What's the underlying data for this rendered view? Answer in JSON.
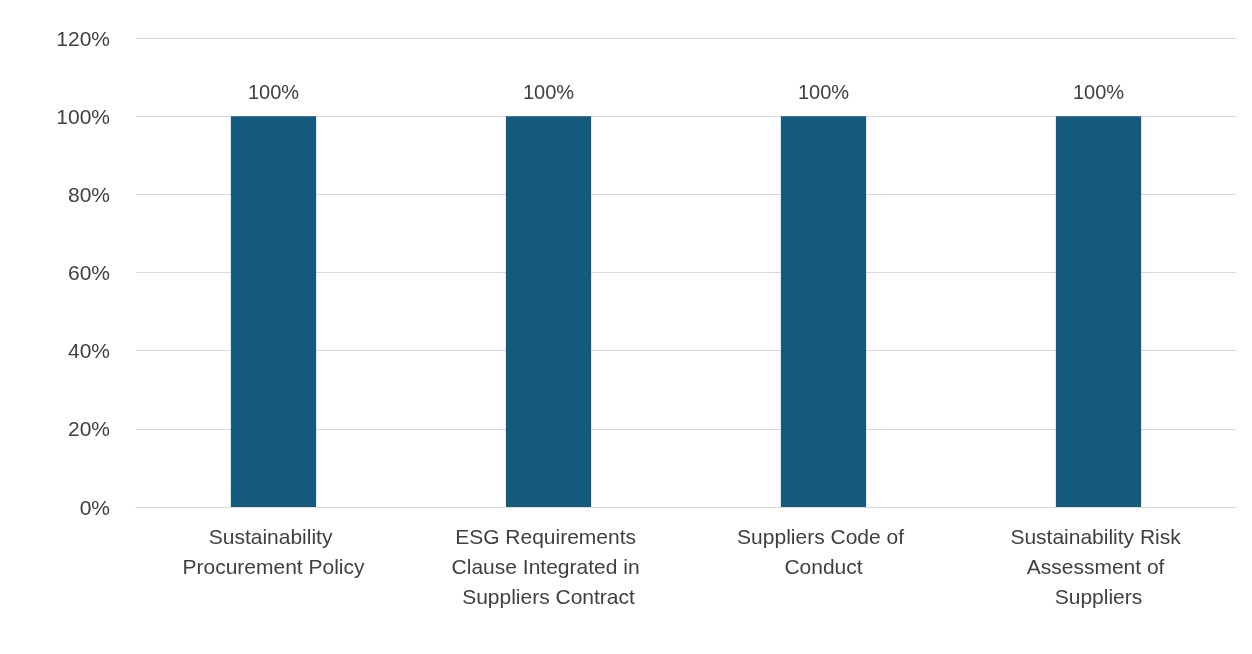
{
  "chart_data": {
    "type": "bar",
    "categories": [
      "Sustainability Procurement Policy",
      "ESG Requirements Clause Integrated in Suppliers Contract",
      "Suppliers Code of Conduct",
      "Sustainability Risk Assessment of Suppliers"
    ],
    "values": [
      100,
      100,
      100,
      100
    ],
    "value_labels": [
      "100%",
      "100%",
      "100%",
      "100%"
    ],
    "color": "#145a7c",
    "ylim": [
      0,
      120
    ],
    "yticks": [
      {
        "value": 0,
        "label": "0%"
      },
      {
        "value": 20,
        "label": "20%"
      },
      {
        "value": 40,
        "label": "40%"
      },
      {
        "value": 60,
        "label": "60%"
      },
      {
        "value": 80,
        "label": "80%"
      },
      {
        "value": 100,
        "label": "100%"
      },
      {
        "value": 120,
        "label": "120%"
      }
    ],
    "grid": "y"
  }
}
